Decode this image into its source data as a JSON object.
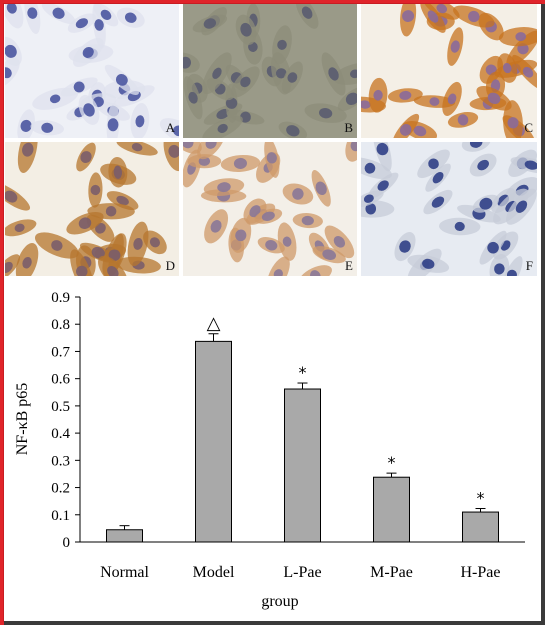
{
  "panels": [
    {
      "label": "A",
      "bg": "#eef0f6",
      "cyto": "#dfe2ee",
      "nucleus": "#4a55a0"
    },
    {
      "label": "B",
      "bg": "#9a9a88",
      "cyto": "#8c8c7a",
      "nucleus": "#5a5c70"
    },
    {
      "label": "C",
      "bg": "#f4efe6",
      "cyto": "#c7731f",
      "nucleus": "#8a6a9a"
    },
    {
      "label": "D",
      "bg": "#f3eee4",
      "cyto": "#b5752e",
      "nucleus": "#7a5d6a"
    },
    {
      "label": "E",
      "bg": "#f3efe8",
      "cyto": "#cf9a6a",
      "nucleus": "#8a7898"
    },
    {
      "label": "F",
      "bg": "#e7ebf2",
      "cyto": "#c7ccd8",
      "nucleus": "#2f3f86"
    }
  ],
  "chart_data": {
    "type": "bar",
    "categories": [
      "Normal",
      "Model",
      "L-Pae",
      "M-Pae",
      "H-Pae"
    ],
    "values": [
      0.045,
      0.737,
      0.562,
      0.238,
      0.11
    ],
    "errors": [
      0.015,
      0.028,
      0.022,
      0.015,
      0.013
    ],
    "annotations": [
      "",
      "△",
      "*",
      "*",
      "*"
    ],
    "xlabel": "group",
    "ylabel": "NF-κB p65",
    "ylim": [
      0,
      0.9
    ],
    "yticks": [
      "0",
      "0.1",
      "0.2",
      "0.3",
      "0.4",
      "0.5",
      "0.6",
      "0.7",
      "0.8",
      "0.9"
    ],
    "bar_color": "#a9a9a9",
    "grid": false
  }
}
